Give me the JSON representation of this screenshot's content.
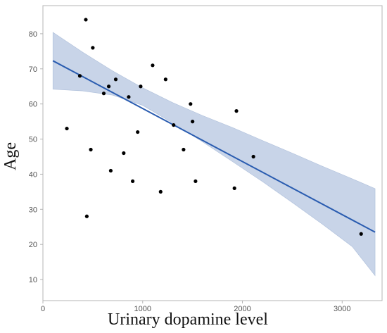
{
  "chart_data": {
    "type": "scatter",
    "title": "",
    "xlabel": "Urinary dopamine level",
    "ylabel": "Age",
    "xlim": [
      0,
      3400
    ],
    "ylim": [
      4,
      88
    ],
    "xticks": [
      0,
      1000,
      2000,
      3000
    ],
    "yticks": [
      10,
      20,
      30,
      40,
      50,
      60,
      70,
      80
    ],
    "grid": false,
    "legend": "none",
    "points": [
      {
        "x": 240,
        "y": 53
      },
      {
        "x": 370,
        "y": 68
      },
      {
        "x": 430,
        "y": 84
      },
      {
        "x": 440,
        "y": 28
      },
      {
        "x": 480,
        "y": 47
      },
      {
        "x": 500,
        "y": 76
      },
      {
        "x": 610,
        "y": 63
      },
      {
        "x": 660,
        "y": 65
      },
      {
        "x": 680,
        "y": 41
      },
      {
        "x": 730,
        "y": 67
      },
      {
        "x": 810,
        "y": 46
      },
      {
        "x": 860,
        "y": 62
      },
      {
        "x": 900,
        "y": 38
      },
      {
        "x": 950,
        "y": 52
      },
      {
        "x": 980,
        "y": 65
      },
      {
        "x": 1100,
        "y": 71
      },
      {
        "x": 1180,
        "y": 35
      },
      {
        "x": 1230,
        "y": 67
      },
      {
        "x": 1310,
        "y": 54
      },
      {
        "x": 1410,
        "y": 47
      },
      {
        "x": 1480,
        "y": 60
      },
      {
        "x": 1500,
        "y": 55
      },
      {
        "x": 1530,
        "y": 38
      },
      {
        "x": 1920,
        "y": 36
      },
      {
        "x": 1940,
        "y": 58
      },
      {
        "x": 2110,
        "y": 45
      },
      {
        "x": 3190,
        "y": 23
      }
    ],
    "fit": {
      "x": [
        100,
        3330
      ],
      "y": [
        72.3,
        23.5
      ]
    },
    "confidence_band": {
      "x": [
        100,
        400,
        700,
        1000,
        1300,
        1600,
        1900,
        2200,
        2500,
        2800,
        3100,
        3330
      ],
      "upper": [
        80.4,
        74.7,
        69.4,
        64.6,
        60.4,
        56.7,
        53.3,
        49.6,
        46.0,
        42.3,
        38.7,
        35.9
      ],
      "lower": [
        64.2,
        63.7,
        62.5,
        59.6,
        54.6,
        49.2,
        43.6,
        37.9,
        31.9,
        25.8,
        19.4,
        11.1
      ]
    },
    "colors": {
      "points": "#000000",
      "fit_line": "#2a5cb0",
      "band": "#c8d4e8",
      "band_edge": "#8fa7cc"
    }
  }
}
